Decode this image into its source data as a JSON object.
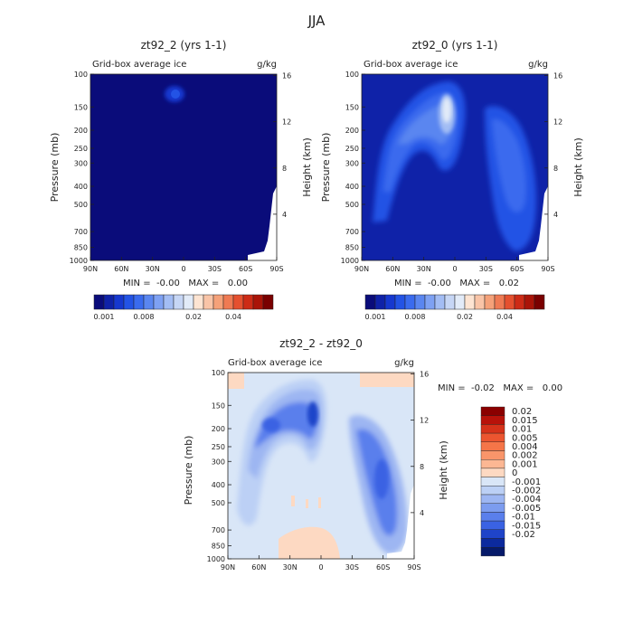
{
  "figure": {
    "title": "JJA"
  },
  "chart_data": [
    {
      "type": "heatmap",
      "title": "zt92_2 (yrs 1-1)",
      "subtitle_left": "Grid-box average ice",
      "subtitle_right": "g/kg",
      "xlabel": "",
      "ylabel": "Pressure (mb)",
      "ylabel_right": "Height (km)",
      "x_ticks": [
        "90N",
        "60N",
        "30N",
        "0",
        "30S",
        "60S",
        "90S"
      ],
      "y_ticks": [
        "100",
        "150",
        "200",
        "250",
        "300",
        "400",
        "500",
        "700",
        "850",
        "1000"
      ],
      "y_ticks_right": [
        "16",
        "12",
        "8",
        "4"
      ],
      "ylim": [
        1000,
        100
      ],
      "stats_text": "MIN =  -0.00   MAX =   0.00",
      "colorbar_ticks": [
        "0.001",
        "0.008",
        "0.02",
        "0.04"
      ],
      "colorbar_colors": [
        "#0a0c7a",
        "#0f22a8",
        "#1638cf",
        "#2353e5",
        "#3a6bee",
        "#5a86f0",
        "#7ea1f3",
        "#a3bdf4",
        "#c6d6f5",
        "#e2ebf8",
        "#fde4d2",
        "#f9c4a7",
        "#f5a179",
        "#ef7a53",
        "#e5502f",
        "#cd2b16",
        "#aa1408",
        "#7a0000"
      ]
    },
    {
      "type": "heatmap",
      "title": "zt92_0 (yrs 1-1)",
      "subtitle_left": "Grid-box average ice",
      "subtitle_right": "g/kg",
      "xlabel": "",
      "ylabel": "Pressure (mb)",
      "ylabel_right": "Height (km)",
      "x_ticks": [
        "90N",
        "60N",
        "30N",
        "0",
        "30S",
        "60S",
        "90S"
      ],
      "y_ticks": [
        "100",
        "150",
        "200",
        "250",
        "300",
        "400",
        "500",
        "700",
        "850",
        "1000"
      ],
      "y_ticks_right": [
        "16",
        "12",
        "8",
        "4"
      ],
      "ylim": [
        1000,
        100
      ],
      "stats_text": "MIN =  -0.00   MAX =   0.02",
      "colorbar_ticks": [
        "0.001",
        "0.008",
        "0.02",
        "0.04"
      ],
      "colorbar_colors": [
        "#0a0c7a",
        "#0f22a8",
        "#1638cf",
        "#2353e5",
        "#3a6bee",
        "#5a86f0",
        "#7ea1f3",
        "#a3bdf4",
        "#c6d6f5",
        "#e2ebf8",
        "#fde4d2",
        "#f9c4a7",
        "#f5a179",
        "#ef7a53",
        "#e5502f",
        "#cd2b16",
        "#aa1408",
        "#7a0000"
      ]
    },
    {
      "type": "heatmap",
      "title": "zt92_2 - zt92_0",
      "subtitle_left": "Grid-box average ice",
      "subtitle_right": "g/kg",
      "xlabel": "",
      "ylabel": "Pressure (mb)",
      "ylabel_right": "Height (km)",
      "x_ticks": [
        "90N",
        "60N",
        "30N",
        "0",
        "30S",
        "60S",
        "90S"
      ],
      "y_ticks": [
        "100",
        "150",
        "200",
        "250",
        "300",
        "400",
        "500",
        "700",
        "850",
        "1000"
      ],
      "y_ticks_right": [
        "16",
        "12",
        "8",
        "4"
      ],
      "ylim": [
        1000,
        100
      ],
      "stats_text": "MIN =  -0.02   MAX =   0.00",
      "legend_levels": [
        "0.02",
        "0.015",
        "0.01",
        "0.005",
        "0.004",
        "0.002",
        "0.001",
        "0",
        "-0.001",
        "-0.002",
        "-0.004",
        "-0.005",
        "-0.01",
        "-0.015",
        "-0.02"
      ],
      "legend_colors": [
        "#8b0000",
        "#b8120a",
        "#d6321a",
        "#ec5530",
        "#f57548",
        "#f9956a",
        "#fcb793",
        "#fdd9c2",
        "#d9e6f7",
        "#bcd0f5",
        "#9db6f2",
        "#7c9cef",
        "#5a7fec",
        "#3a62e3",
        "#1f44c9",
        "#0c2a9e",
        "#061a6a"
      ]
    }
  ]
}
